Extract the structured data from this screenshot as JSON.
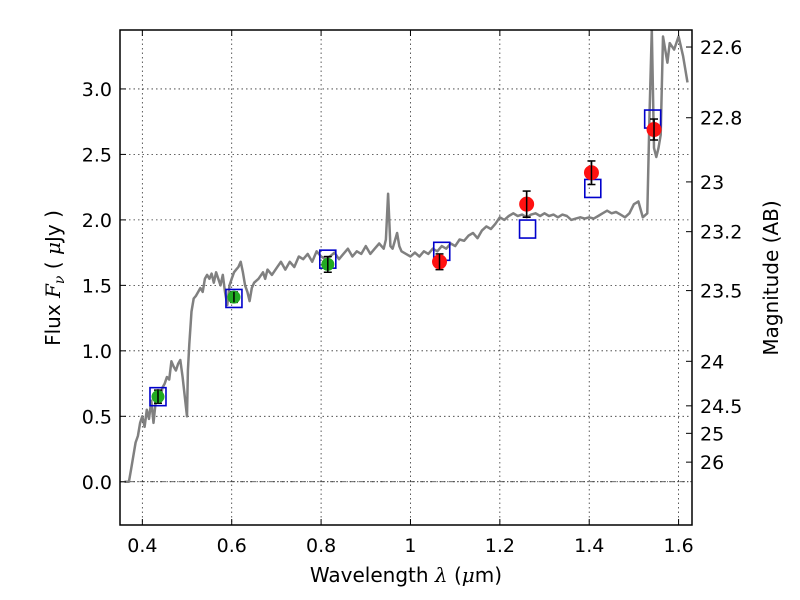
{
  "chart_data": {
    "type": "scatter",
    "xlabel_text": "Wavelength",
    "xlabel_symbol": "λ",
    "xlabel_unit_open": " (",
    "xlabel_unit_mu": "μ",
    "xlabel_unit_rest": "m)",
    "ylabel_text": "Flux",
    "ylabel_symbol_F": "F",
    "ylabel_symbol_nu": "ν",
    "ylabel_unit_open": "  ( ",
    "ylabel_unit_mu": "μ",
    "ylabel_unit_rest": "Jy )",
    "y2label": "Magnitude (AB)",
    "xlim": [
      0.35,
      1.63
    ],
    "ylim": [
      -0.33,
      3.45
    ],
    "grid": true,
    "x_ticks": [
      0.4,
      0.6,
      0.8,
      1.0,
      1.2,
      1.4,
      1.6
    ],
    "x_tick_labels": [
      "0.4",
      "0.6",
      "0.8",
      "1",
      "1.2",
      "1.4",
      "1.6"
    ],
    "y_ticks": [
      0.0,
      0.5,
      1.0,
      1.5,
      2.0,
      2.5,
      3.0
    ],
    "y_tick_labels": [
      "0.0",
      "0.5",
      "1.0",
      "1.5",
      "2.0",
      "2.5",
      "3.0"
    ],
    "y2_ticks": [
      {
        "label": "22.6",
        "flux": 3.32
      },
      {
        "label": "22.8",
        "flux": 2.78
      },
      {
        "label": "23",
        "flux": 2.29
      },
      {
        "label": "23.2",
        "flux": 1.91
      },
      {
        "label": "23.5",
        "flux": 1.46
      },
      {
        "label": "24",
        "flux": 0.92
      },
      {
        "label": "24.5",
        "flux": 0.58
      },
      {
        "label": "25",
        "flux": 0.37
      },
      {
        "label": "26",
        "flux": 0.15
      }
    ],
    "colors": {
      "spectrum": "#808080",
      "model": "#0000cc",
      "optical": "#22aa22",
      "nir": "#ff1111",
      "errorbar": "#000000"
    },
    "series": [
      {
        "kind": "line",
        "points": [
          [
            0.36,
            0.0
          ],
          [
            0.37,
            0.0
          ],
          [
            0.375,
            0.1
          ],
          [
            0.38,
            0.2
          ],
          [
            0.385,
            0.3
          ],
          [
            0.39,
            0.35
          ],
          [
            0.395,
            0.45
          ],
          [
            0.4,
            0.5
          ],
          [
            0.405,
            0.42
          ],
          [
            0.41,
            0.55
          ],
          [
            0.415,
            0.48
          ],
          [
            0.42,
            0.62
          ],
          [
            0.425,
            0.45
          ],
          [
            0.43,
            0.62
          ],
          [
            0.435,
            0.7
          ],
          [
            0.44,
            0.63
          ],
          [
            0.445,
            0.72
          ],
          [
            0.45,
            0.75
          ],
          [
            0.455,
            0.8
          ],
          [
            0.46,
            0.78
          ],
          [
            0.465,
            0.92
          ],
          [
            0.47,
            0.88
          ],
          [
            0.475,
            0.85
          ],
          [
            0.48,
            0.9
          ],
          [
            0.485,
            0.93
          ],
          [
            0.49,
            0.8
          ],
          [
            0.495,
            0.65
          ],
          [
            0.5,
            0.5
          ],
          [
            0.502,
            0.85
          ],
          [
            0.505,
            1.05
          ],
          [
            0.51,
            1.3
          ],
          [
            0.515,
            1.4
          ],
          [
            0.52,
            1.42
          ],
          [
            0.525,
            1.45
          ],
          [
            0.53,
            1.48
          ],
          [
            0.535,
            1.45
          ],
          [
            0.54,
            1.55
          ],
          [
            0.545,
            1.58
          ],
          [
            0.55,
            1.55
          ],
          [
            0.555,
            1.59
          ],
          [
            0.56,
            1.52
          ],
          [
            0.565,
            1.6
          ],
          [
            0.57,
            1.55
          ],
          [
            0.575,
            1.5
          ],
          [
            0.58,
            1.58
          ],
          [
            0.585,
            1.45
          ],
          [
            0.59,
            1.35
          ],
          [
            0.595,
            1.5
          ],
          [
            0.6,
            1.55
          ],
          [
            0.605,
            1.6
          ],
          [
            0.61,
            1.62
          ],
          [
            0.615,
            1.64
          ],
          [
            0.62,
            1.68
          ],
          [
            0.625,
            1.6
          ],
          [
            0.63,
            1.5
          ],
          [
            0.635,
            1.45
          ],
          [
            0.64,
            1.38
          ],
          [
            0.645,
            1.48
          ],
          [
            0.65,
            1.52
          ],
          [
            0.66,
            1.55
          ],
          [
            0.67,
            1.6
          ],
          [
            0.675,
            1.55
          ],
          [
            0.68,
            1.62
          ],
          [
            0.69,
            1.58
          ],
          [
            0.7,
            1.63
          ],
          [
            0.71,
            1.68
          ],
          [
            0.72,
            1.62
          ],
          [
            0.73,
            1.68
          ],
          [
            0.74,
            1.64
          ],
          [
            0.75,
            1.72
          ],
          [
            0.76,
            1.7
          ],
          [
            0.77,
            1.74
          ],
          [
            0.78,
            1.68
          ],
          [
            0.79,
            1.76
          ],
          [
            0.8,
            1.72
          ],
          [
            0.81,
            1.7
          ],
          [
            0.82,
            1.72
          ],
          [
            0.83,
            1.75
          ],
          [
            0.84,
            1.7
          ],
          [
            0.85,
            1.74
          ],
          [
            0.86,
            1.78
          ],
          [
            0.87,
            1.72
          ],
          [
            0.88,
            1.76
          ],
          [
            0.89,
            1.74
          ],
          [
            0.9,
            1.8
          ],
          [
            0.91,
            1.74
          ],
          [
            0.92,
            1.78
          ],
          [
            0.93,
            1.82
          ],
          [
            0.94,
            1.78
          ],
          [
            0.945,
            1.85
          ],
          [
            0.95,
            2.2
          ],
          [
            0.955,
            1.8
          ],
          [
            0.96,
            1.78
          ],
          [
            0.97,
            1.9
          ],
          [
            0.975,
            1.8
          ],
          [
            0.98,
            1.76
          ],
          [
            0.99,
            1.74
          ],
          [
            1.0,
            1.72
          ],
          [
            1.01,
            1.75
          ],
          [
            1.02,
            1.72
          ],
          [
            1.03,
            1.76
          ],
          [
            1.04,
            1.74
          ],
          [
            1.05,
            1.78
          ],
          [
            1.06,
            1.76
          ],
          [
            1.07,
            1.8
          ],
          [
            1.08,
            1.78
          ],
          [
            1.09,
            1.82
          ],
          [
            1.1,
            1.8
          ],
          [
            1.11,
            1.85
          ],
          [
            1.12,
            1.84
          ],
          [
            1.13,
            1.88
          ],
          [
            1.14,
            1.9
          ],
          [
            1.15,
            1.86
          ],
          [
            1.16,
            1.92
          ],
          [
            1.17,
            1.95
          ],
          [
            1.18,
            1.93
          ],
          [
            1.19,
            1.97
          ],
          [
            1.2,
            2.02
          ],
          [
            1.21,
            2.0
          ],
          [
            1.22,
            2.03
          ],
          [
            1.23,
            2.05
          ],
          [
            1.24,
            2.03
          ],
          [
            1.25,
            2.04
          ],
          [
            1.26,
            2.02
          ],
          [
            1.27,
            2.04
          ],
          [
            1.28,
            2.05
          ],
          [
            1.29,
            2.03
          ],
          [
            1.3,
            2.05
          ],
          [
            1.31,
            2.03
          ],
          [
            1.32,
            2.04
          ],
          [
            1.33,
            2.02
          ],
          [
            1.34,
            2.04
          ],
          [
            1.35,
            2.03
          ],
          [
            1.36,
            2.0
          ],
          [
            1.37,
            2.01
          ],
          [
            1.38,
            2.02
          ],
          [
            1.39,
            2.01
          ],
          [
            1.4,
            2.02
          ],
          [
            1.41,
            2.01
          ],
          [
            1.42,
            2.03
          ],
          [
            1.43,
            2.05
          ],
          [
            1.44,
            2.07
          ],
          [
            1.45,
            2.05
          ],
          [
            1.46,
            2.06
          ],
          [
            1.47,
            2.04
          ],
          [
            1.48,
            2.02
          ],
          [
            1.49,
            2.05
          ],
          [
            1.5,
            2.12
          ],
          [
            1.51,
            2.14
          ],
          [
            1.52,
            2.02
          ],
          [
            1.53,
            2.05
          ],
          [
            1.535,
            2.8
          ],
          [
            1.54,
            3.45
          ],
          [
            1.545,
            2.55
          ],
          [
            1.55,
            2.48
          ],
          [
            1.555,
            2.55
          ],
          [
            1.56,
            2.65
          ],
          [
            1.565,
            3.4
          ],
          [
            1.575,
            3.2
          ],
          [
            1.58,
            3.35
          ],
          [
            1.59,
            3.3
          ],
          [
            1.6,
            3.4
          ],
          [
            1.61,
            3.25
          ],
          [
            1.62,
            3.05
          ]
        ]
      },
      {
        "kind": "model_squares",
        "points": [
          [
            0.435,
            0.65
          ],
          [
            0.605,
            1.4
          ],
          [
            0.815,
            1.7
          ],
          [
            1.07,
            1.76
          ],
          [
            1.262,
            1.93
          ],
          [
            1.408,
            2.24
          ],
          [
            1.542,
            2.77
          ]
        ]
      },
      {
        "kind": "optical_points",
        "points": [
          {
            "x": 0.435,
            "y": 0.65,
            "err": 0.05
          },
          {
            "x": 0.605,
            "y": 1.41,
            "err": 0.04
          },
          {
            "x": 0.815,
            "y": 1.66,
            "err": 0.06
          }
        ]
      },
      {
        "kind": "nir_points",
        "points": [
          {
            "x": 1.065,
            "y": 1.68,
            "err": 0.06
          },
          {
            "x": 1.26,
            "y": 2.12,
            "err": 0.1
          },
          {
            "x": 1.405,
            "y": 2.36,
            "err": 0.09
          },
          {
            "x": 1.545,
            "y": 2.69,
            "err": 0.08
          }
        ]
      }
    ]
  }
}
